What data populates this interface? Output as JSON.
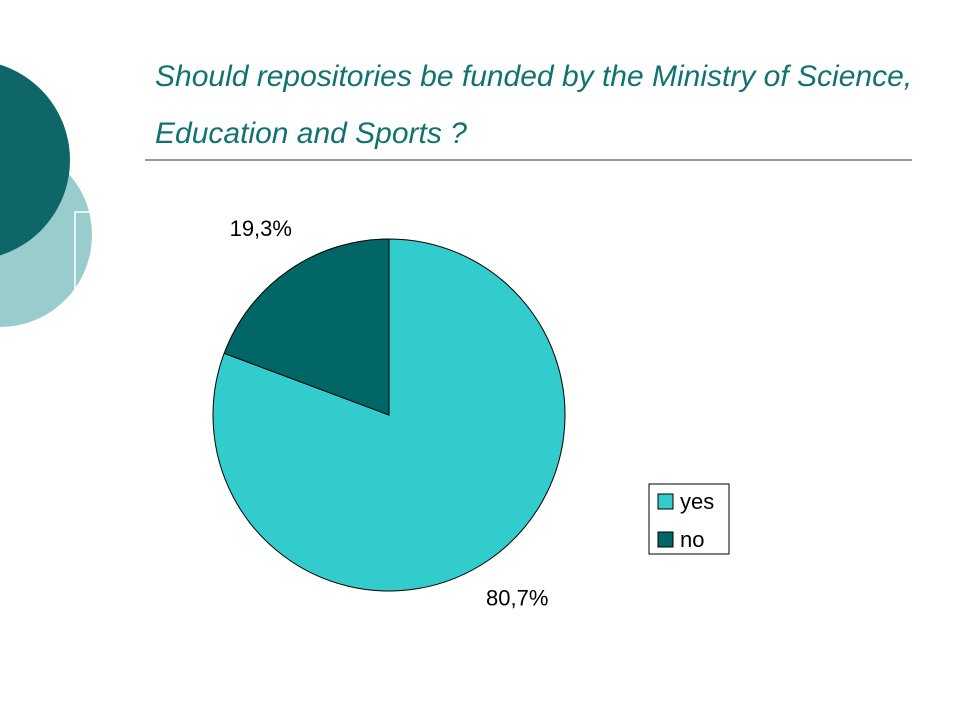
{
  "chart_data": {
    "type": "pie",
    "title": "Should repositories be funded by the Ministry of Science, Education and Sports ?",
    "categories": [
      "yes",
      "no"
    ],
    "values": [
      80.7,
      19.3
    ],
    "value_labels": [
      "80,7%",
      "19,3%"
    ],
    "colors": [
      "#33cccc",
      "#006666"
    ],
    "legend": "right"
  }
}
